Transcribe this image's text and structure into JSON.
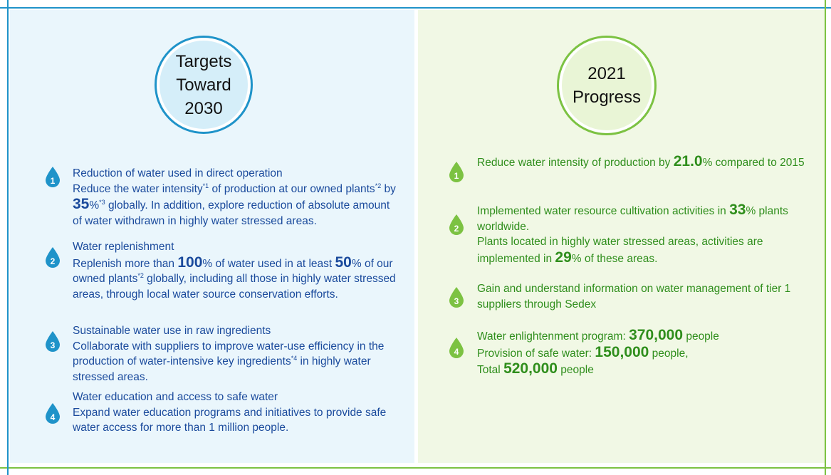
{
  "colors": {
    "left_accent": "#1f93c9",
    "left_panel_bg": "#eaf6fc",
    "left_circle_fill": "#d5eef9",
    "left_text": "#1a4a9c",
    "right_accent": "#7cc242",
    "right_panel_bg": "#f1f8e5",
    "right_circle_fill": "#e9f5d6",
    "right_text": "#2f8e1c"
  },
  "left": {
    "title": "Targets\nToward\n2030",
    "items": [
      {
        "num": "1",
        "heading": "Reduction of water used in direct operation",
        "t1": "Reduce the water intensity",
        "s1": "*1",
        "t2": " of production at our owned plants",
        "s2": "*2",
        "t3": " by ",
        "b1": "35",
        "t4": "%",
        "s3": "*3",
        "t5": " globally. In addition, explore reduction of absolute amount of water withdrawn in highly water stressed areas."
      },
      {
        "num": "2",
        "heading": "Water replenishment",
        "t1": "Replenish more than ",
        "b1": "100",
        "t2": "% of water used in at least ",
        "b2": "50",
        "t3": "% of our owned plants",
        "s1": "*2",
        "t4": " globally, including all those in highly water stressed areas, through local water source conservation efforts."
      },
      {
        "num": "3",
        "heading": "Sustainable water use in raw ingredients",
        "t1": "Collaborate with suppliers to improve water-use efficiency in the production of water-intensive key ingredients",
        "s1": "*4",
        "t2": " in highly water stressed areas."
      },
      {
        "num": "4",
        "heading": "Water education and access to safe water",
        "t1": "Expand water education programs and initiatives to provide safe water access for more than 1 million people."
      }
    ]
  },
  "right": {
    "title": "2021\nProgress",
    "items": [
      {
        "num": "1",
        "t1": "Reduce water intensity of production by ",
        "b1": "21.0",
        "t2": "% compared to 2015"
      },
      {
        "num": "2",
        "t1": "Implemented water resource cultivation activities in ",
        "b1": "33",
        "t2": "% plants worldwide.",
        "t3": "Plants located in highly water stressed areas, activities are implemented in ",
        "b2": "29",
        "t4": "% of these areas."
      },
      {
        "num": "3",
        "t1": "Gain and understand information on water management of tier 1 suppliers through Sedex"
      },
      {
        "num": "4",
        "t1": "Water enlightenment program: ",
        "b1": "370,000",
        "t2": " people",
        "t3": "Provision of safe water: ",
        "b2": "150,000",
        "t4": " people,",
        "t5": "Total ",
        "b3": "520,000",
        "t6": " people"
      }
    ]
  }
}
